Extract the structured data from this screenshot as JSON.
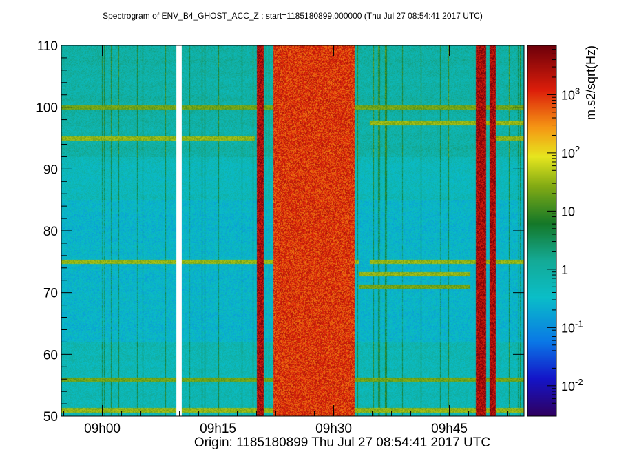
{
  "chart_data": {
    "type": "heatmap",
    "title": "Spectrogram of ENV_B4_GHOST_ACC_Z : start=1185180899.000000 (Thu Jul 27 08:54:41 2017 UTC)",
    "xlabel": "Origin: 1185180899  Thu Jul 27 08:54:41 2017 UTC",
    "ylabel": "",
    "x_ticks": [
      {
        "label": "09h00",
        "value": 5.3167
      },
      {
        "label": "09h15",
        "value": 20.3167
      },
      {
        "label": "09h30",
        "value": 35.3167
      },
      {
        "label": "09h45",
        "value": 50.3167
      }
    ],
    "xlim": [
      0,
      60
    ],
    "y_ticks": [
      50,
      60,
      70,
      80,
      90,
      100,
      110
    ],
    "ylim": [
      50,
      110
    ],
    "colorbar": {
      "label": "m.s2/sqrt(Hz)",
      "scale": "log",
      "range": [
        0.003,
        7000
      ],
      "tick_labels": [
        {
          "base": "10",
          "exp": "-2",
          "value": 0.01
        },
        {
          "base": "10",
          "exp": "-1",
          "value": 0.1
        },
        {
          "base": "1",
          "exp": "",
          "value": 1
        },
        {
          "base": "10",
          "exp": "",
          "value": 10
        },
        {
          "base": "10",
          "exp": "2",
          "value": 100
        },
        {
          "base": "10",
          "exp": "3",
          "value": 1000
        }
      ]
    },
    "gaps": [
      [
        14.9,
        15.6
      ]
    ],
    "broadband_bursts": [
      {
        "x": [
          25.3,
          26.2
        ],
        "level": 3000
      },
      {
        "x": [
          27.5,
          38.0
        ],
        "level": 1000
      },
      {
        "x": [
          53.7,
          55.0
        ],
        "level": 3000
      },
      {
        "x": [
          55.5,
          56.3
        ],
        "level": 3000
      }
    ],
    "narrow_lines": [
      {
        "f": 51,
        "x": [
          0,
          60
        ],
        "level": 30
      },
      {
        "f": 56,
        "x": [
          0,
          60
        ],
        "level": 20
      },
      {
        "f": 75,
        "x": [
          0,
          38.5
        ],
        "level": 30
      },
      {
        "f": 75,
        "x": [
          40,
          60
        ],
        "level": 30
      },
      {
        "f": 73,
        "x": [
          38.5,
          53
        ],
        "level": 30
      },
      {
        "f": 71,
        "x": [
          38.5,
          53
        ],
        "level": 20
      },
      {
        "f": 95,
        "x": [
          0,
          25
        ],
        "level": 30
      },
      {
        "f": 95,
        "x": [
          56,
          60
        ],
        "level": 30
      },
      {
        "f": 100,
        "x": [
          0,
          60
        ],
        "level": 20
      },
      {
        "f": 97.5,
        "x": [
          40,
          60
        ],
        "level": 30
      }
    ]
  }
}
